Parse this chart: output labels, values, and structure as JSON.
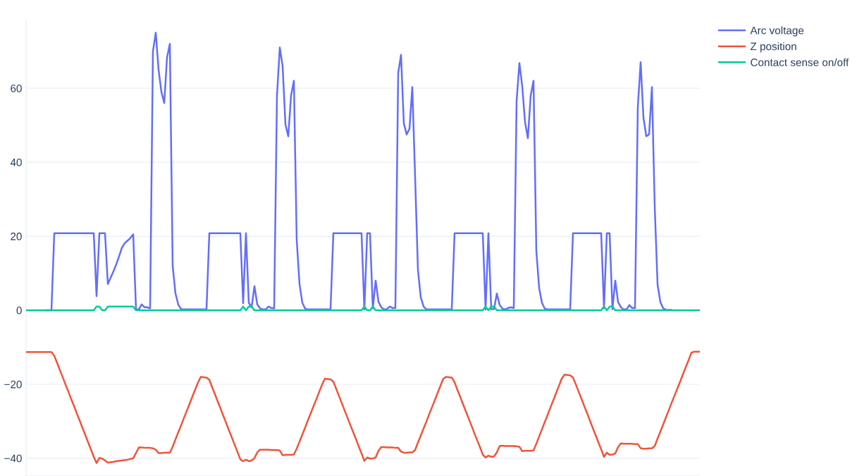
{
  "chart_data": {
    "type": "line",
    "categories": [
      null,
      null,
      null,
      null,
      null,
      null,
      null,
      null,
      null,
      null,
      null,
      null,
      null,
      null,
      null,
      null,
      null,
      null,
      null,
      null,
      null,
      null,
      null,
      null,
      null,
      null,
      null,
      null,
      null,
      null,
      null,
      null,
      null,
      null,
      null,
      null,
      null,
      null,
      null,
      null,
      null,
      null,
      null,
      null,
      null,
      null,
      null,
      null,
      null,
      null,
      null,
      null,
      null,
      null,
      null,
      null,
      null,
      null,
      null,
      null,
      null,
      null,
      null,
      null,
      null,
      null,
      null,
      null,
      null,
      null,
      null,
      null,
      null,
      null,
      null,
      null,
      null,
      null,
      null,
      null,
      null,
      null,
      null,
      null,
      null,
      null,
      null,
      null,
      null,
      null,
      null,
      null,
      null,
      null,
      null,
      null,
      null,
      null,
      null,
      null,
      null,
      null,
      null,
      null,
      null,
      null,
      null,
      null,
      null,
      null,
      null,
      null,
      null,
      null,
      null,
      null,
      null,
      null,
      null,
      null,
      null,
      null,
      null,
      null,
      null,
      null,
      null,
      null,
      null,
      null,
      null,
      null,
      null,
      null,
      null,
      null,
      null,
      null,
      null,
      null,
      null,
      null,
      null,
      null,
      null,
      null,
      null,
      null,
      null,
      null,
      null,
      null,
      null,
      null,
      null,
      null,
      null,
      null,
      null,
      null,
      null,
      null,
      null,
      null,
      null,
      null,
      null,
      null,
      null,
      null,
      null,
      null,
      null,
      null,
      null,
      null,
      null,
      null,
      null,
      null,
      null,
      null,
      null,
      null,
      null,
      null,
      null,
      null,
      null,
      null,
      null,
      null,
      null,
      null,
      null,
      null,
      null,
      null,
      null,
      null,
      null,
      null,
      null,
      null,
      null,
      null,
      null,
      null,
      null,
      null,
      null,
      null,
      null,
      null,
      null,
      null,
      null,
      null,
      null,
      null,
      null,
      null,
      null,
      null,
      null,
      null,
      null,
      null,
      null,
      null,
      null,
      null,
      null,
      null,
      null,
      null,
      null,
      null,
      null,
      null
    ],
    "series": [
      {
        "name": "Arc voltage",
        "color": "#636efa",
        "values": [
          null,
          null,
          null,
          null,
          null,
          null,
          null,
          0,
          0,
          0,
          20.8,
          20.8,
          20.8,
          20.8,
          20.8,
          20.8,
          20.8,
          20.8,
          20.8,
          20.8,
          20.8,
          20.8,
          20.8,
          20.8,
          20.8,
          3.8,
          20.8,
          20.8,
          20.8,
          7.1,
          8.8,
          10.5,
          12.4,
          14.6,
          16.9,
          18.1,
          18.8,
          19.5,
          20.5,
          0.2,
          0.2,
          1.6,
          0.8,
          0.8,
          0.5,
          70,
          75,
          65,
          59,
          56,
          68.3,
          72,
          12,
          4.5,
          1.5,
          0.3,
          0.2,
          0.2,
          0.2,
          0.2,
          0.2,
          0.2,
          0.2,
          0.2,
          0.2,
          20.8,
          20.8,
          20.8,
          20.8,
          20.8,
          20.8,
          20.8,
          20.8,
          20.8,
          20.8,
          20.8,
          20.8,
          1.9,
          20.8,
          2.0,
          0.8,
          6.5,
          1.6,
          0.5,
          0.2,
          0.2,
          1.0,
          0.6,
          0.5,
          58,
          71,
          66,
          50.2,
          47,
          58,
          62,
          19,
          7,
          2,
          0.4,
          0.2,
          0.2,
          0.2,
          0.2,
          0.2,
          0.2,
          0.2,
          0.2,
          0.2,
          20.8,
          20.8,
          20.8,
          20.8,
          20.8,
          20.8,
          20.8,
          20.8,
          20.8,
          20.8,
          20.8,
          0.2,
          20.8,
          20.8,
          0.5,
          8,
          2.3,
          0.8,
          0.2,
          0.3,
          1.0,
          0.6,
          0.6,
          64.1,
          69,
          50.5,
          47.5,
          49,
          60.3,
          36,
          11,
          3.5,
          1.0,
          0.2,
          0.2,
          0.2,
          0.2,
          0.2,
          0.2,
          0.2,
          0.2,
          0.2,
          0.2,
          20.8,
          20.8,
          20.8,
          20.8,
          20.8,
          20.8,
          20.8,
          20.8,
          20.8,
          20.8,
          20.8,
          0.2,
          20.8,
          0.3,
          0.3,
          4.5,
          1.4,
          0.4,
          0.2,
          0.6,
          0.8,
          0.6,
          56.5,
          66.8,
          60.5,
          50.8,
          46.5,
          58,
          62,
          16,
          6,
          2,
          0.4,
          0.2,
          0.2,
          0.2,
          0.2,
          0.2,
          0.2,
          0.2,
          0.2,
          0.2,
          20.8,
          20.8,
          20.8,
          20.8,
          20.8,
          20.8,
          20.8,
          20.8,
          20.8,
          20.8,
          20.8,
          0.5,
          20.8,
          20.8,
          0.3,
          8,
          2.2,
          0.8,
          0.2,
          0.2,
          1.4,
          0.6,
          0.6,
          55,
          67,
          52,
          47,
          47.5,
          60.3,
          28,
          7,
          2.2,
          0.5,
          0.1,
          0.1,
          0.1,
          null,
          null,
          null,
          null,
          null,
          null,
          null,
          null,
          null,
          null
        ]
      },
      {
        "name": "Z position",
        "color": "#ef553b",
        "values": [
          -11.3,
          -11.3,
          -11.3,
          -11.3,
          -11.3,
          -11.3,
          -11.3,
          -11.3,
          -11.3,
          -11.3,
          -12.3,
          -14.2,
          -16.2,
          -18.1,
          -20.1,
          -22.0,
          -24.0,
          -25.9,
          -27.9,
          -29.8,
          -31.8,
          -33.7,
          -35.7,
          -37.6,
          -39.6,
          -41.3,
          -39.9,
          -40.1,
          -40.6,
          -41.2,
          -41.1,
          -41.0,
          -40.8,
          -40.7,
          -40.6,
          -40.5,
          -40.4,
          -40.2,
          -40.0,
          -38.6,
          -37.1,
          -37.1,
          -37.2,
          -37.2,
          -37.2,
          -37.3,
          -37.7,
          -38.6,
          -38.6,
          -38.5,
          -38.5,
          -38.5,
          -36.9,
          -34.9,
          -33.0,
          -31.1,
          -29.1,
          -27.2,
          -25.3,
          -23.3,
          -21.4,
          -19.5,
          -18.0,
          -18.1,
          -18.2,
          -18.8,
          -20.8,
          -22.7,
          -24.7,
          -26.6,
          -28.6,
          -30.5,
          -32.5,
          -34.4,
          -36.4,
          -38.3,
          -40.3,
          -40.8,
          -40.4,
          -40.8,
          -40.6,
          -40.0,
          -38.4,
          -37.7,
          -37.7,
          -37.7,
          -37.7,
          -37.8,
          -37.8,
          -37.8,
          -37.9,
          -39.2,
          -39.1,
          -39.1,
          -39.1,
          -39.0,
          -37.4,
          -35.5,
          -33.6,
          -31.7,
          -29.7,
          -27.8,
          -25.9,
          -24.0,
          -22.0,
          -20.1,
          -18.5,
          -18.6,
          -18.7,
          -19.3,
          -21.2,
          -23.2,
          -25.1,
          -27.1,
          -29.0,
          -31.0,
          -32.9,
          -34.8,
          -36.8,
          -38.7,
          -40.7,
          -39.8,
          -40.1,
          -40.1,
          -39.8,
          -38.0,
          -37.0,
          -37.0,
          -37.1,
          -37.1,
          -37.1,
          -37.2,
          -37.2,
          -38.2,
          -38.5,
          -38.5,
          -38.4,
          -38.4,
          -37.8,
          -35.8,
          -33.9,
          -32.0,
          -30.1,
          -28.1,
          -26.2,
          -24.3,
          -22.3,
          -20.4,
          -18.5,
          -18.0,
          -18.1,
          -18.2,
          -19.5,
          -21.5,
          -23.4,
          -25.4,
          -27.3,
          -29.3,
          -31.2,
          -33.2,
          -35.1,
          -37.0,
          -39.0,
          -39.8,
          -39.3,
          -39.6,
          -39.5,
          -38.4,
          -36.7,
          -36.6,
          -36.7,
          -36.7,
          -36.7,
          -36.7,
          -36.8,
          -36.9,
          -38.1,
          -38.0,
          -38.0,
          -38.0,
          -37.9,
          -36.1,
          -34.1,
          -32.2,
          -30.2,
          -28.3,
          -26.3,
          -24.4,
          -22.4,
          -20.5,
          -18.5,
          -17.4,
          -17.5,
          -17.6,
          -18.2,
          -20.0,
          -22.0,
          -23.9,
          -25.9,
          -27.8,
          -29.8,
          -31.8,
          -33.7,
          -35.7,
          -37.6,
          -39.6,
          -38.5,
          -39.1,
          -39.0,
          -38.7,
          -37.0,
          -36.0,
          -36.1,
          -36.1,
          -36.1,
          -36.1,
          -36.2,
          -36.2,
          -37.3,
          -37.4,
          -37.4,
          -37.3,
          -37.3,
          -36.7,
          -34.7,
          -32.8,
          -30.9,
          -28.9,
          -27.0,
          -25.0,
          -23.1,
          -21.2,
          -19.3,
          -17.3,
          -15.4,
          -13.5,
          -11.5,
          -11.2,
          -11.2,
          -11.2
        ]
      },
      {
        "name": "Contact sense on/off",
        "color": "#00cc96",
        "values": [
          0,
          0,
          0,
          0,
          0,
          0,
          0,
          0,
          0,
          0,
          0,
          0,
          0,
          0,
          0,
          0,
          0,
          0,
          0,
          0,
          0,
          0,
          0,
          0,
          0,
          1,
          1,
          0,
          0,
          1,
          1,
          1,
          1,
          1,
          1,
          1,
          1,
          1,
          1,
          0,
          0,
          0,
          0,
          0,
          0,
          0,
          0,
          0,
          0,
          0,
          0,
          0,
          0,
          0,
          0,
          0,
          0,
          0,
          0,
          0,
          0,
          0,
          0,
          0,
          0,
          0,
          0,
          0,
          0,
          0,
          0,
          0,
          0,
          0,
          0,
          0,
          0,
          1,
          0,
          1,
          1,
          0,
          0,
          0,
          0,
          0,
          0,
          0,
          0,
          0,
          0,
          0,
          0,
          0,
          0,
          0,
          0,
          0,
          0,
          0,
          0,
          0,
          0,
          0,
          0,
          0,
          0,
          0,
          0,
          0,
          0,
          0,
          0,
          0,
          0,
          0,
          0,
          0,
          0,
          0,
          1,
          0,
          0,
          1,
          0,
          0,
          0,
          0,
          0,
          0,
          0,
          0,
          0,
          0,
          0,
          0,
          0,
          0,
          0,
          0,
          0,
          0,
          0,
          0,
          0,
          0,
          0,
          0,
          0,
          0,
          0,
          0,
          0,
          0,
          0,
          0,
          0,
          0,
          0,
          0,
          0,
          0,
          0,
          1,
          0,
          1,
          1,
          0,
          0,
          0,
          0,
          0,
          0,
          0,
          0,
          0,
          0,
          0,
          0,
          0,
          0,
          0,
          0,
          0,
          0,
          0,
          0,
          0,
          0,
          0,
          0,
          0,
          0,
          0,
          0,
          0,
          0,
          0,
          0,
          0,
          0,
          0,
          0,
          0,
          0,
          1,
          0,
          1,
          1,
          0,
          0,
          0,
          0,
          0,
          0,
          0,
          0,
          0,
          0,
          0,
          0,
          0,
          0,
          0,
          0,
          0,
          0,
          0,
          0,
          0,
          0,
          0,
          0,
          0,
          0,
          0,
          0,
          0,
          0,
          0
        ]
      }
    ],
    "ylim": [
      -44.8,
      78.5
    ],
    "yticks": [
      {
        "value": -40,
        "label": "−40"
      },
      {
        "value": -20,
        "label": "−20"
      },
      0,
      20,
      40,
      60
    ],
    "grid": "y",
    "legend": "top right",
    "tick_labels": "y"
  }
}
